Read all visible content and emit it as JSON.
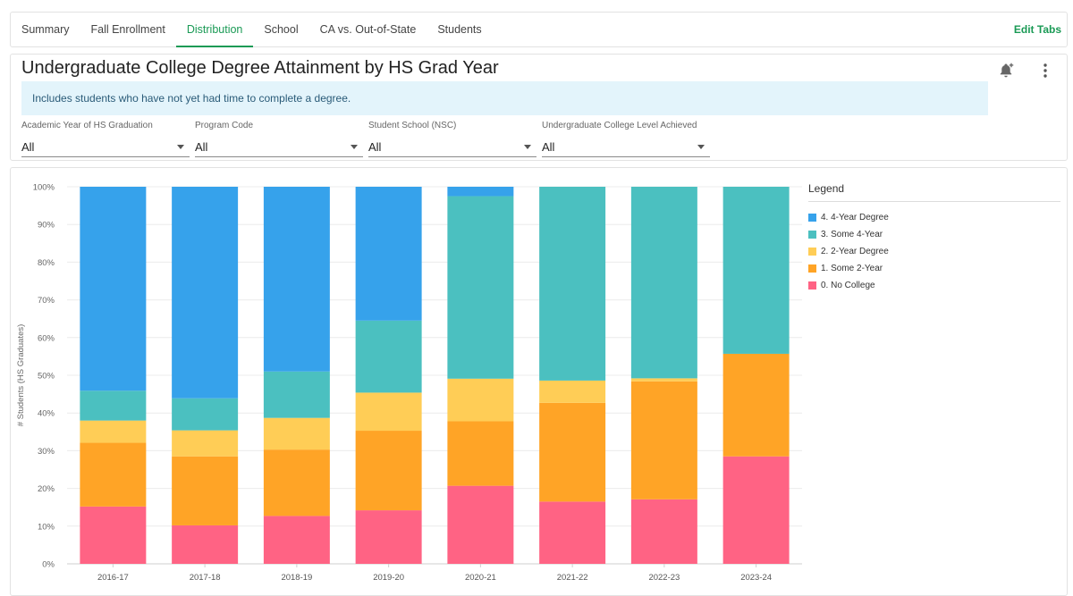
{
  "tabs": [
    {
      "label": "Summary"
    },
    {
      "label": "Fall Enrollment"
    },
    {
      "label": "Distribution"
    },
    {
      "label": "School"
    },
    {
      "label": "CA vs. Out-of-State"
    },
    {
      "label": "Students"
    }
  ],
  "active_tab": "Distribution",
  "edit_tabs_label": "Edit Tabs",
  "header": {
    "title": "Undergraduate College Degree Attainment by HS Grad Year",
    "info": "Includes students who have not yet had time to complete a degree.",
    "icons": {
      "alert": "bell-plus-icon",
      "more": "more-vert-icon"
    }
  },
  "filters": [
    {
      "label": "Academic Year of HS Graduation",
      "value": "All"
    },
    {
      "label": "Program Code",
      "value": "All"
    },
    {
      "label": "Student School (NSC)",
      "value": "All"
    },
    {
      "label": "Undergraduate College Level Achieved",
      "value": "All"
    }
  ],
  "legend_title": "Legend",
  "chart_data": {
    "type": "bar",
    "stacked": true,
    "percent": true,
    "ylabel": "# Students (HS Graduates)",
    "ylim": [
      0,
      100
    ],
    "yticks": [
      "0%",
      "10%",
      "20%",
      "30%",
      "40%",
      "50%",
      "60%",
      "70%",
      "80%",
      "90%",
      "100%"
    ],
    "grid": true,
    "legend_position": "right",
    "categories": [
      "2016-17",
      "2017-18",
      "2018-19",
      "2019-20",
      "2020-21",
      "2021-22",
      "2022-23",
      "2023-24"
    ],
    "series": [
      {
        "name": "0. No College",
        "color": "#ff6384",
        "values": [
          15.2,
          10.2,
          12.7,
          14.2,
          20.7,
          16.5,
          17.1,
          28.5
        ]
      },
      {
        "name": "1. Some 2-Year",
        "color": "#ffa426",
        "values": [
          16.9,
          18.3,
          17.6,
          21.1,
          17.1,
          26.2,
          31.3,
          27.2
        ]
      },
      {
        "name": "2. 2-Year Degree",
        "color": "#ffcd56",
        "values": [
          5.9,
          6.9,
          8.4,
          10.1,
          11.3,
          5.9,
          0.8,
          0.0
        ]
      },
      {
        "name": "3. Some 4-Year",
        "color": "#4bc0c0",
        "values": [
          7.9,
          8.5,
          12.3,
          19.1,
          48.4,
          51.4,
          50.8,
          44.3
        ]
      },
      {
        "name": "4. 4-Year Degree",
        "color": "#36a2eb",
        "values": [
          54.1,
          56.1,
          49.0,
          35.5,
          2.5,
          0.0,
          0.0,
          0.0
        ]
      }
    ]
  }
}
